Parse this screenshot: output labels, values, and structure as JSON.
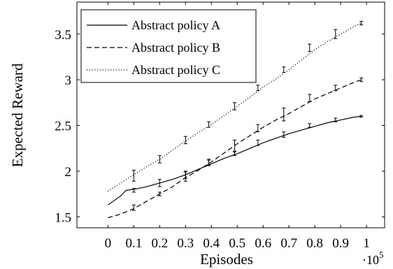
{
  "chart_data": {
    "type": "line",
    "xlabel": "Episodes",
    "ylabel": "Expected Reward",
    "x_multiplier_base": "·10",
    "x_multiplier_exp": "5",
    "xlim": [
      -0.12,
      1.07
    ],
    "ylim": [
      1.38,
      3.85
    ],
    "x_ticks": [
      0,
      0.1,
      0.2,
      0.3,
      0.4,
      0.5,
      0.6,
      0.7,
      0.8,
      0.9,
      1
    ],
    "x_tick_labels": [
      "0",
      "0.1",
      "0.2",
      "0.3",
      "0.4",
      "0.5",
      "0.6",
      "0.7",
      "0.8",
      "0.9",
      "1"
    ],
    "y_ticks": [
      1.5,
      2,
      2.5,
      3,
      3.5
    ],
    "y_tick_labels": [
      "1.5",
      "2",
      "2.5",
      "3",
      "3.5"
    ],
    "legend_position": "top-left",
    "series": [
      {
        "name": "Abstract policy A",
        "style": "solid",
        "x": [
          0,
          0.05,
          0.07,
          0.1,
          0.15,
          0.2,
          0.25,
          0.3,
          0.35,
          0.4,
          0.45,
          0.5,
          0.55,
          0.6,
          0.65,
          0.7,
          0.75,
          0.8,
          0.85,
          0.9,
          0.95,
          0.98
        ],
        "y": [
          1.63,
          1.73,
          1.79,
          1.8,
          1.83,
          1.87,
          1.91,
          1.96,
          2.02,
          2.08,
          2.14,
          2.19,
          2.25,
          2.31,
          2.36,
          2.41,
          2.45,
          2.49,
          2.53,
          2.56,
          2.59,
          2.6
        ],
        "error_x": [
          0.1,
          0.2,
          0.3,
          0.39,
          0.49,
          0.58,
          0.68,
          0.78,
          0.88,
          0.98
        ],
        "error_y": [
          1.79,
          1.87,
          1.96,
          2.09,
          2.19,
          2.31,
          2.4,
          2.5,
          2.56,
          2.6
        ],
        "error_half": [
          0.02,
          0.04,
          0.04,
          0.03,
          0.02,
          0.03,
          0.03,
          0.02,
          0.02,
          0.01
        ]
      },
      {
        "name": "Abstract policy B",
        "style": "dashed",
        "x": [
          0,
          0.05,
          0.1,
          0.15,
          0.2,
          0.25,
          0.3,
          0.35,
          0.4,
          0.45,
          0.5,
          0.55,
          0.6,
          0.65,
          0.7,
          0.75,
          0.8,
          0.85,
          0.9,
          0.95,
          0.98
        ],
        "y": [
          1.49,
          1.53,
          1.59,
          1.67,
          1.75,
          1.83,
          1.93,
          2.01,
          2.1,
          2.2,
          2.3,
          2.39,
          2.48,
          2.56,
          2.63,
          2.71,
          2.79,
          2.85,
          2.91,
          2.97,
          3.0
        ],
        "error_x": [
          0.1,
          0.2,
          0.3,
          0.39,
          0.49,
          0.58,
          0.68,
          0.78,
          0.88,
          0.98
        ],
        "error_y": [
          1.6,
          1.75,
          1.94,
          2.1,
          2.28,
          2.47,
          2.62,
          2.8,
          2.91,
          3.0
        ],
        "error_half": [
          0.03,
          0.02,
          0.05,
          0.03,
          0.06,
          0.04,
          0.07,
          0.04,
          0.03,
          0.02
        ]
      },
      {
        "name": "Abstract policy C",
        "style": "dotted",
        "x": [
          0,
          0.05,
          0.1,
          0.15,
          0.2,
          0.25,
          0.3,
          0.35,
          0.4,
          0.45,
          0.5,
          0.55,
          0.6,
          0.65,
          0.7,
          0.75,
          0.8,
          0.85,
          0.9,
          0.95,
          0.98
        ],
        "y": [
          1.78,
          1.87,
          1.96,
          2.05,
          2.13,
          2.23,
          2.33,
          2.42,
          2.51,
          2.61,
          2.71,
          2.81,
          2.92,
          3.01,
          3.11,
          3.22,
          3.33,
          3.42,
          3.5,
          3.58,
          3.62
        ],
        "error_x": [
          0.1,
          0.2,
          0.3,
          0.39,
          0.49,
          0.58,
          0.68,
          0.78,
          0.88,
          0.98
        ],
        "error_y": [
          1.95,
          2.13,
          2.34,
          2.51,
          2.71,
          2.91,
          3.11,
          3.35,
          3.5,
          3.62
        ],
        "error_half": [
          0.06,
          0.04,
          0.04,
          0.03,
          0.04,
          0.03,
          0.03,
          0.04,
          0.05,
          0.02
        ]
      }
    ]
  }
}
